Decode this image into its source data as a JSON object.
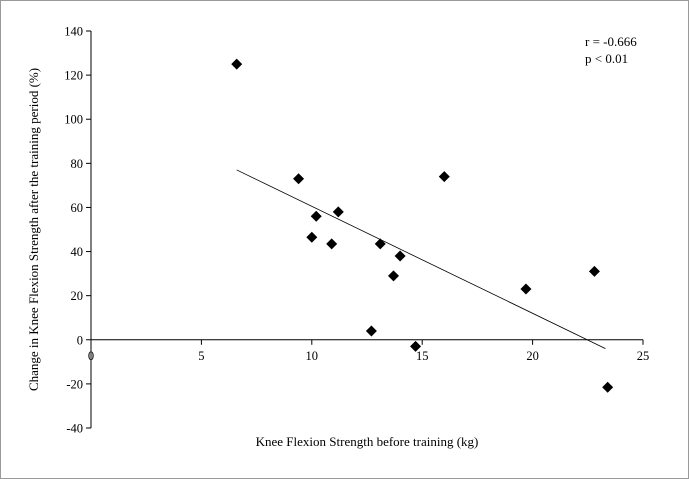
{
  "chart_data": {
    "type": "scatter",
    "xlabel": "Knee Flexion Strength before training  (kg)",
    "ylabel": "Change in Knee Flexion Strength after the training period (%)",
    "xlim": [
      0,
      25
    ],
    "ylim": [
      -40,
      140
    ],
    "x_ticks": [
      0,
      5,
      10,
      15,
      20,
      25
    ],
    "y_ticks": [
      -40,
      -20,
      0,
      20,
      40,
      60,
      80,
      100,
      120,
      140
    ],
    "grid": false,
    "marker": "diamond",
    "points": [
      {
        "x": 6.6,
        "y": 125
      },
      {
        "x": 9.4,
        "y": 73
      },
      {
        "x": 10.2,
        "y": 56
      },
      {
        "x": 10.0,
        "y": 46.5
      },
      {
        "x": 10.9,
        "y": 43.5
      },
      {
        "x": 11.2,
        "y": 58
      },
      {
        "x": 12.7,
        "y": 4
      },
      {
        "x": 13.1,
        "y": 43.5
      },
      {
        "x": 13.7,
        "y": 29
      },
      {
        "x": 14.0,
        "y": 38
      },
      {
        "x": 14.7,
        "y": -3
      },
      {
        "x": 16.0,
        "y": 74
      },
      {
        "x": 19.7,
        "y": 23
      },
      {
        "x": 22.8,
        "y": 31
      },
      {
        "x": 23.4,
        "y": -21.5
      }
    ],
    "trendline": {
      "x": [
        6.6,
        23.3
      ],
      "y": [
        77,
        -4
      ]
    },
    "annotations": [
      "r = -0.666",
      "p < 0.01"
    ]
  }
}
